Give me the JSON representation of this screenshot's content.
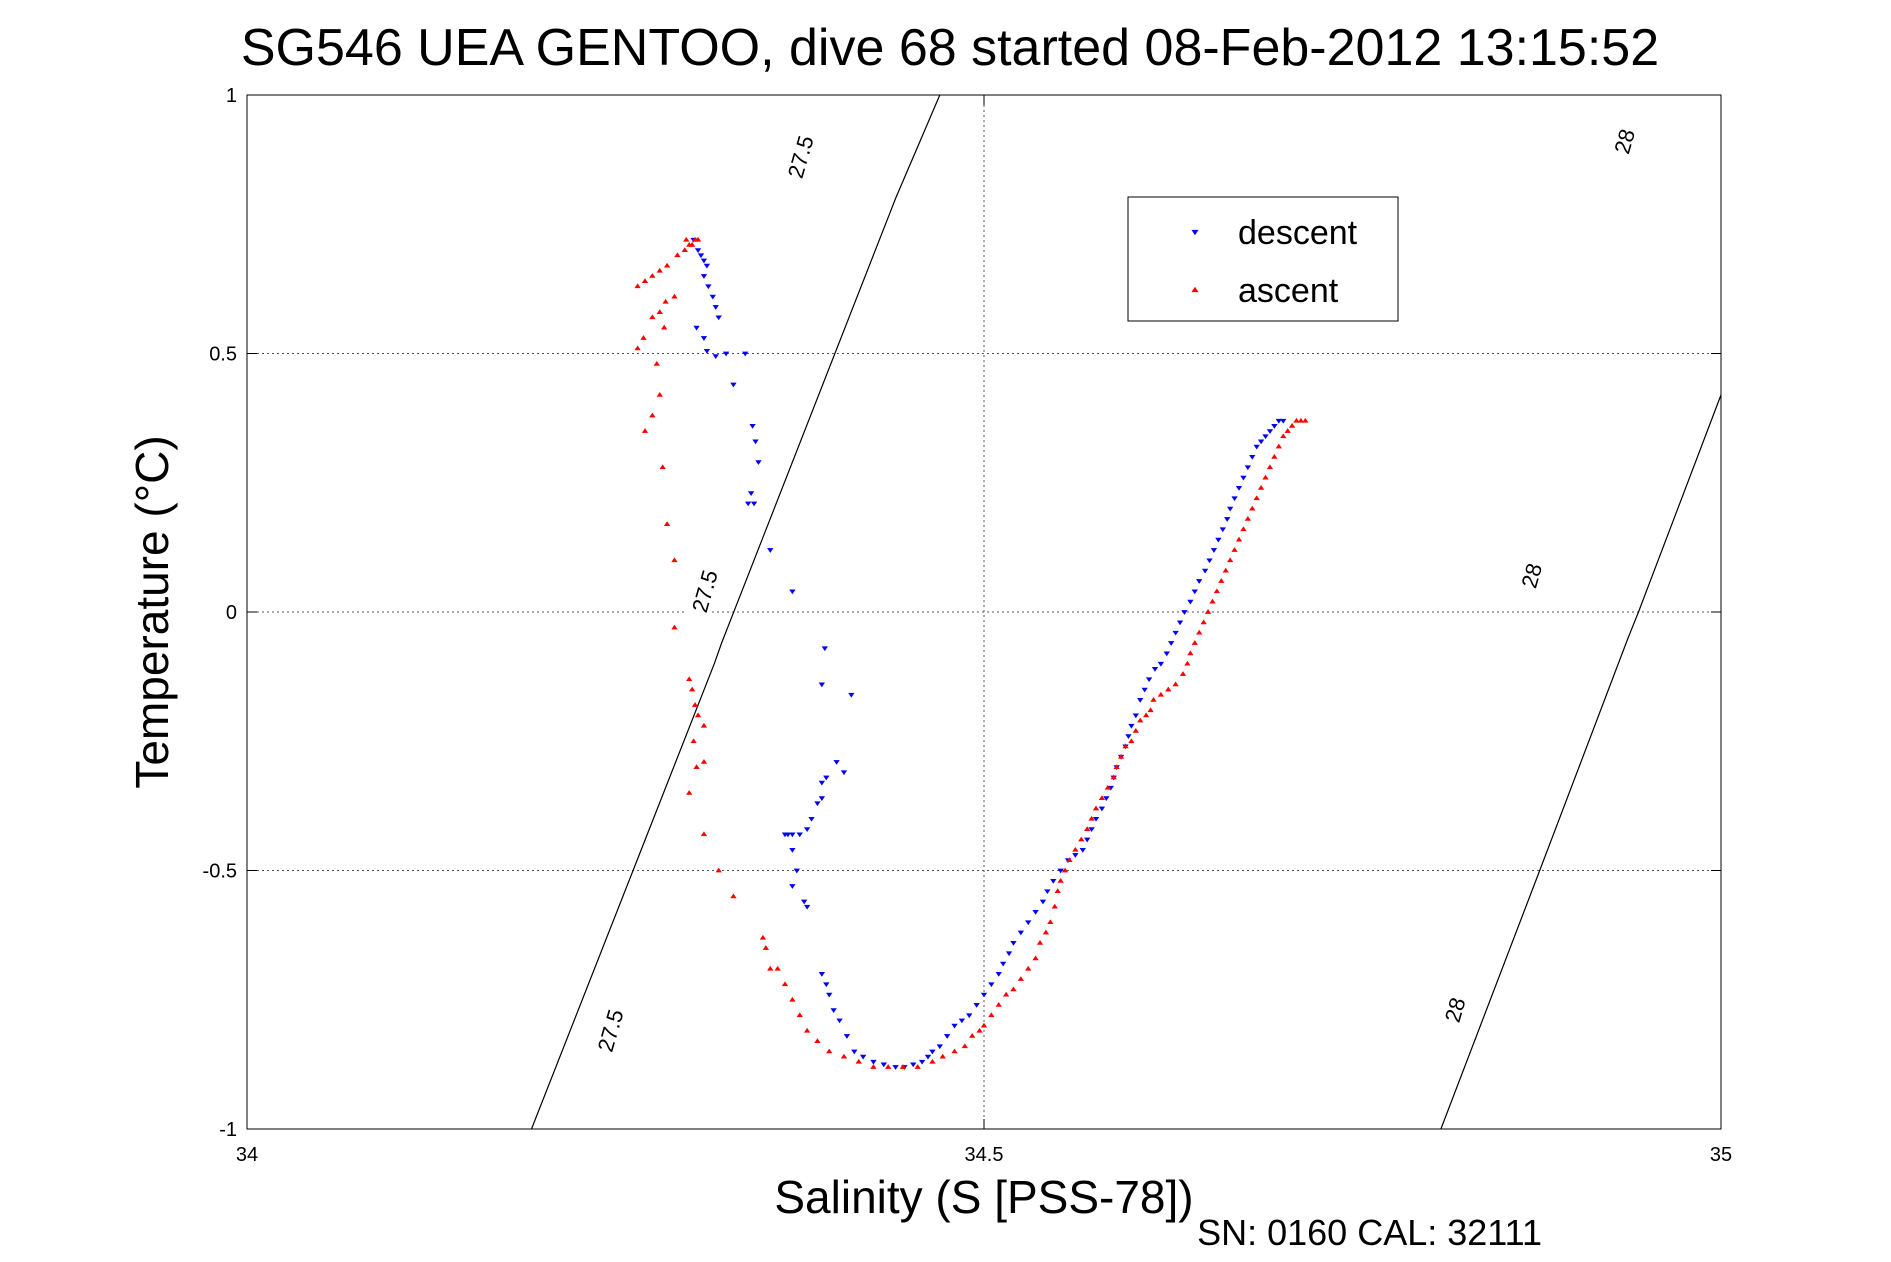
{
  "chart_data": {
    "type": "scatter",
    "title": "SG546 UEA GENTOO, dive 68 started 08-Feb-2012 13:15:52",
    "xlabel": "Salinity (S [PSS-78])",
    "ylabel": "Temperature (°C)",
    "xlim": [
      34,
      35
    ],
    "ylim": [
      -1,
      1
    ],
    "xticks": [
      "34",
      "34.5",
      "35"
    ],
    "yticks": [
      "1",
      "0.5",
      "0",
      "-0.5",
      "-1"
    ],
    "grid": true,
    "legend_position": "top-right",
    "footer": "SN: 0160  CAL: 32111",
    "contours": [
      {
        "label": "27.5",
        "points": [
          [
            34.193,
            -1.0
          ],
          [
            34.317,
            -0.1
          ],
          [
            34.322,
            -0.06
          ],
          [
            34.44,
            0.8
          ],
          [
            34.47,
            1.0
          ]
        ]
      },
      {
        "label": "28",
        "points": [
          [
            34.81,
            -1.0
          ],
          [
            34.877,
            -0.5
          ],
          [
            34.937,
            -0.05
          ],
          [
            34.944,
            0.0
          ],
          [
            35.0,
            0.42
          ],
          [
            35.1,
            1.0
          ]
        ]
      }
    ],
    "contour_labels": [
      {
        "text": "27.5",
        "x": 34.247,
        "y": -0.81
      },
      {
        "text": "27.5",
        "x": 34.311,
        "y": 0.04
      },
      {
        "text": "27.5",
        "x": 34.376,
        "y": 0.88
      },
      {
        "text": "28",
        "x": 34.82,
        "y": -0.77
      },
      {
        "text": "28",
        "x": 34.872,
        "y": 0.07
      },
      {
        "text": "28",
        "x": 34.935,
        "y": 0.91
      }
    ],
    "series": [
      {
        "name": "descent",
        "color": "#0000ff",
        "marker": "triangle-down",
        "points": [
          [
            34.303,
            0.72
          ],
          [
            34.306,
            0.7
          ],
          [
            34.308,
            0.69
          ],
          [
            34.31,
            0.68
          ],
          [
            34.312,
            0.67
          ],
          [
            34.31,
            0.65
          ],
          [
            34.313,
            0.63
          ],
          [
            34.316,
            0.61
          ],
          [
            34.318,
            0.59
          ],
          [
            34.32,
            0.57
          ],
          [
            34.305,
            0.55
          ],
          [
            34.31,
            0.53
          ],
          [
            34.312,
            0.505
          ],
          [
            34.318,
            0.495
          ],
          [
            34.325,
            0.5
          ],
          [
            34.338,
            0.5
          ],
          [
            34.33,
            0.44
          ],
          [
            34.343,
            0.36
          ],
          [
            34.345,
            0.33
          ],
          [
            34.347,
            0.29
          ],
          [
            34.342,
            0.23
          ],
          [
            34.344,
            0.21
          ],
          [
            34.34,
            0.21
          ],
          [
            34.355,
            0.12
          ],
          [
            34.37,
            0.04
          ],
          [
            34.392,
            -0.07
          ],
          [
            34.39,
            -0.14
          ],
          [
            34.41,
            -0.16
          ],
          [
            34.405,
            -0.31
          ],
          [
            34.4,
            -0.29
          ],
          [
            34.393,
            -0.32
          ],
          [
            34.39,
            -0.33
          ],
          [
            34.39,
            -0.36
          ],
          [
            34.387,
            -0.37
          ],
          [
            34.383,
            -0.4
          ],
          [
            34.38,
            -0.42
          ],
          [
            34.375,
            -0.43
          ],
          [
            34.37,
            -0.43
          ],
          [
            34.367,
            -0.43
          ],
          [
            34.365,
            -0.43
          ],
          [
            34.37,
            -0.46
          ],
          [
            34.373,
            -0.5
          ],
          [
            34.37,
            -0.53
          ],
          [
            34.378,
            -0.56
          ],
          [
            34.38,
            -0.57
          ],
          [
            34.39,
            -0.7
          ],
          [
            34.393,
            -0.72
          ],
          [
            34.395,
            -0.74
          ],
          [
            34.398,
            -0.77
          ],
          [
            34.402,
            -0.79
          ],
          [
            34.407,
            -0.82
          ],
          [
            34.412,
            -0.85
          ],
          [
            34.418,
            -0.86
          ],
          [
            34.425,
            -0.87
          ],
          [
            34.432,
            -0.875
          ],
          [
            34.44,
            -0.88
          ],
          [
            34.446,
            -0.88
          ],
          [
            34.452,
            -0.875
          ],
          [
            34.458,
            -0.87
          ],
          [
            34.462,
            -0.86
          ],
          [
            34.465,
            -0.85
          ],
          [
            34.47,
            -0.84
          ],
          [
            34.475,
            -0.82
          ],
          [
            34.48,
            -0.8
          ],
          [
            34.485,
            -0.79
          ],
          [
            34.49,
            -0.78
          ],
          [
            34.495,
            -0.76
          ],
          [
            34.5,
            -0.74
          ],
          [
            34.505,
            -0.72
          ],
          [
            34.51,
            -0.7
          ],
          [
            34.513,
            -0.68
          ],
          [
            34.517,
            -0.66
          ],
          [
            34.52,
            -0.64
          ],
          [
            34.525,
            -0.62
          ],
          [
            34.53,
            -0.6
          ],
          [
            34.535,
            -0.58
          ],
          [
            34.54,
            -0.56
          ],
          [
            34.543,
            -0.54
          ],
          [
            34.547,
            -0.52
          ],
          [
            34.552,
            -0.5
          ],
          [
            34.557,
            -0.48
          ],
          [
            34.562,
            -0.47
          ],
          [
            34.567,
            -0.46
          ],
          [
            34.57,
            -0.44
          ],
          [
            34.573,
            -0.42
          ],
          [
            34.576,
            -0.4
          ],
          [
            34.58,
            -0.38
          ],
          [
            34.583,
            -0.36
          ],
          [
            34.586,
            -0.34
          ],
          [
            34.588,
            -0.32
          ],
          [
            34.59,
            -0.3
          ],
          [
            34.593,
            -0.28
          ],
          [
            34.596,
            -0.26
          ],
          [
            34.598,
            -0.24
          ],
          [
            34.6,
            -0.22
          ],
          [
            34.603,
            -0.2
          ],
          [
            34.606,
            -0.17
          ],
          [
            34.609,
            -0.15
          ],
          [
            34.612,
            -0.13
          ],
          [
            34.616,
            -0.11
          ],
          [
            34.62,
            -0.1
          ],
          [
            34.624,
            -0.08
          ],
          [
            34.627,
            -0.06
          ],
          [
            34.63,
            -0.04
          ],
          [
            34.633,
            -0.02
          ],
          [
            34.636,
            0.0
          ],
          [
            34.64,
            0.02
          ],
          [
            34.643,
            0.04
          ],
          [
            34.646,
            0.06
          ],
          [
            34.65,
            0.08
          ],
          [
            34.653,
            0.1
          ],
          [
            34.656,
            0.12
          ],
          [
            34.659,
            0.14
          ],
          [
            34.662,
            0.16
          ],
          [
            34.665,
            0.18
          ],
          [
            34.667,
            0.2
          ],
          [
            34.67,
            0.22
          ],
          [
            34.673,
            0.24
          ],
          [
            34.676,
            0.26
          ],
          [
            34.679,
            0.28
          ],
          [
            34.682,
            0.3
          ],
          [
            34.685,
            0.32
          ],
          [
            34.688,
            0.33
          ],
          [
            34.691,
            0.34
          ],
          [
            34.694,
            0.35
          ],
          [
            34.697,
            0.36
          ],
          [
            34.7,
            0.37
          ],
          [
            34.703,
            0.37
          ]
        ]
      },
      {
        "name": "ascent",
        "color": "#ff0000",
        "marker": "triangle-up",
        "points": [
          [
            34.298,
            0.72
          ],
          [
            34.3,
            0.71
          ],
          [
            34.302,
            0.71
          ],
          [
            34.304,
            0.72
          ],
          [
            34.306,
            0.72
          ],
          [
            34.297,
            0.7
          ],
          [
            34.292,
            0.69
          ],
          [
            34.285,
            0.67
          ],
          [
            34.28,
            0.66
          ],
          [
            34.275,
            0.65
          ],
          [
            34.27,
            0.64
          ],
          [
            34.265,
            0.63
          ],
          [
            34.29,
            0.61
          ],
          [
            34.284,
            0.6
          ],
          [
            34.28,
            0.58
          ],
          [
            34.275,
            0.57
          ],
          [
            34.283,
            0.55
          ],
          [
            34.269,
            0.53
          ],
          [
            34.265,
            0.51
          ],
          [
            34.278,
            0.48
          ],
          [
            34.28,
            0.42
          ],
          [
            34.275,
            0.38
          ],
          [
            34.27,
            0.35
          ],
          [
            34.282,
            0.28
          ],
          [
            34.285,
            0.17
          ],
          [
            34.29,
            0.1
          ],
          [
            34.29,
            -0.03
          ],
          [
            34.3,
            -0.13
          ],
          [
            34.302,
            -0.15
          ],
          [
            34.304,
            -0.18
          ],
          [
            34.306,
            -0.2
          ],
          [
            34.31,
            -0.22
          ],
          [
            34.303,
            -0.25
          ],
          [
            34.305,
            -0.3
          ],
          [
            34.31,
            -0.29
          ],
          [
            34.3,
            -0.35
          ],
          [
            34.31,
            -0.43
          ],
          [
            34.32,
            -0.5
          ],
          [
            34.33,
            -0.55
          ],
          [
            34.35,
            -0.63
          ],
          [
            34.352,
            -0.65
          ],
          [
            34.355,
            -0.69
          ],
          [
            34.36,
            -0.69
          ],
          [
            34.365,
            -0.72
          ],
          [
            34.37,
            -0.75
          ],
          [
            34.375,
            -0.78
          ],
          [
            34.38,
            -0.81
          ],
          [
            34.387,
            -0.83
          ],
          [
            34.395,
            -0.85
          ],
          [
            34.405,
            -0.86
          ],
          [
            34.415,
            -0.87
          ],
          [
            34.425,
            -0.88
          ],
          [
            34.435,
            -0.88
          ],
          [
            34.445,
            -0.88
          ],
          [
            34.455,
            -0.88
          ],
          [
            34.465,
            -0.87
          ],
          [
            34.472,
            -0.86
          ],
          [
            34.48,
            -0.85
          ],
          [
            34.487,
            -0.84
          ],
          [
            34.492,
            -0.82
          ],
          [
            34.497,
            -0.81
          ],
          [
            34.5,
            -0.8
          ],
          [
            34.505,
            -0.78
          ],
          [
            34.51,
            -0.76
          ],
          [
            34.515,
            -0.74
          ],
          [
            34.52,
            -0.73
          ],
          [
            34.525,
            -0.71
          ],
          [
            34.53,
            -0.69
          ],
          [
            34.535,
            -0.67
          ],
          [
            34.538,
            -0.64
          ],
          [
            34.542,
            -0.62
          ],
          [
            34.545,
            -0.6
          ],
          [
            34.548,
            -0.57
          ],
          [
            34.55,
            -0.54
          ],
          [
            34.552,
            -0.52
          ],
          [
            34.555,
            -0.5
          ],
          [
            34.558,
            -0.48
          ],
          [
            34.562,
            -0.46
          ],
          [
            34.566,
            -0.44
          ],
          [
            34.57,
            -0.42
          ],
          [
            34.573,
            -0.4
          ],
          [
            34.576,
            -0.38
          ],
          [
            34.58,
            -0.36
          ],
          [
            34.584,
            -0.34
          ],
          [
            34.588,
            -0.32
          ],
          [
            34.59,
            -0.3
          ],
          [
            34.593,
            -0.28
          ],
          [
            34.596,
            -0.26
          ],
          [
            34.6,
            -0.25
          ],
          [
            34.603,
            -0.23
          ],
          [
            34.606,
            -0.21
          ],
          [
            34.61,
            -0.2
          ],
          [
            34.613,
            -0.19
          ],
          [
            34.615,
            -0.17
          ],
          [
            34.62,
            -0.16
          ],
          [
            34.625,
            -0.15
          ],
          [
            34.63,
            -0.14
          ],
          [
            34.635,
            -0.12
          ],
          [
            34.638,
            -0.1
          ],
          [
            34.64,
            -0.08
          ],
          [
            34.643,
            -0.06
          ],
          [
            34.646,
            -0.04
          ],
          [
            34.649,
            -0.02
          ],
          [
            34.652,
            0.0
          ],
          [
            34.655,
            0.02
          ],
          [
            34.658,
            0.04
          ],
          [
            34.661,
            0.06
          ],
          [
            34.664,
            0.08
          ],
          [
            34.667,
            0.1
          ],
          [
            34.67,
            0.12
          ],
          [
            34.673,
            0.14
          ],
          [
            34.676,
            0.16
          ],
          [
            34.679,
            0.18
          ],
          [
            34.682,
            0.2
          ],
          [
            34.685,
            0.22
          ],
          [
            34.688,
            0.24
          ],
          [
            34.691,
            0.26
          ],
          [
            34.694,
            0.28
          ],
          [
            34.697,
            0.3
          ],
          [
            34.7,
            0.32
          ],
          [
            34.703,
            0.34
          ],
          [
            34.706,
            0.35
          ],
          [
            34.709,
            0.36
          ],
          [
            34.712,
            0.37
          ],
          [
            34.715,
            0.37
          ],
          [
            34.718,
            0.37
          ]
        ]
      }
    ]
  }
}
